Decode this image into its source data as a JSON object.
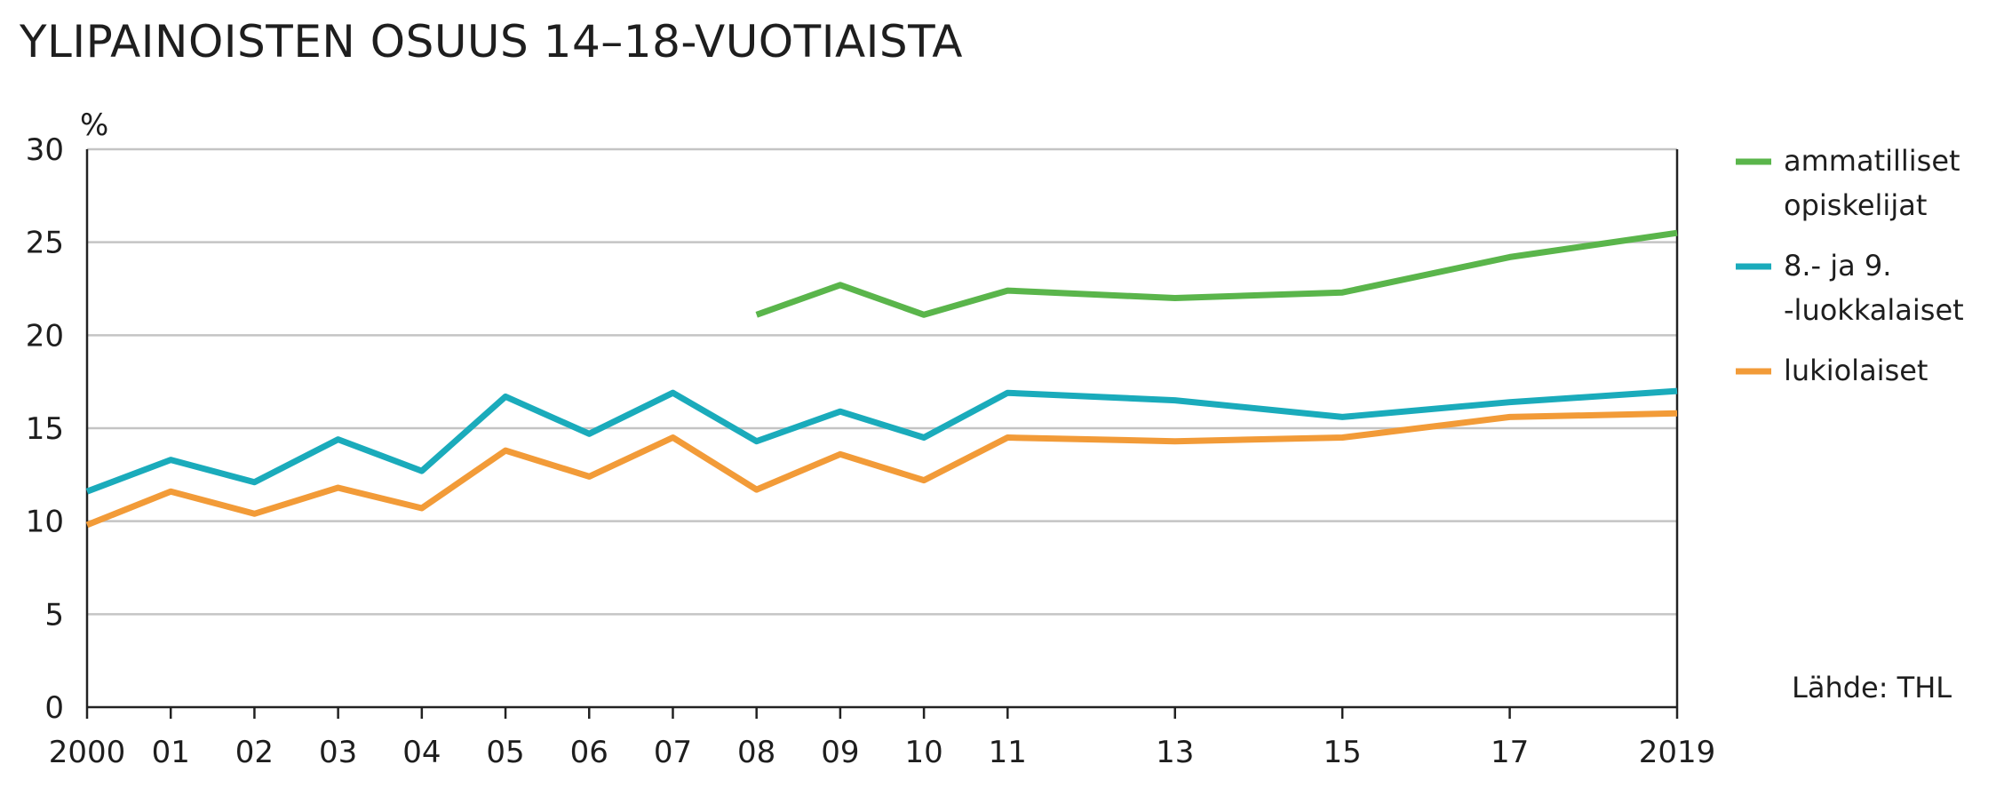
{
  "chart_data": {
    "type": "line",
    "title": "YLIPAINOISTEN OSUUS 14–18-VUOTIAISTA",
    "ylabel": "%",
    "xlabel": "",
    "ylim": [
      0,
      30
    ],
    "yticks": [
      0,
      5,
      10,
      15,
      20,
      25,
      30
    ],
    "xlim": [
      2000,
      2019
    ],
    "x": [
      2000,
      2001,
      2002,
      2003,
      2004,
      2005,
      2006,
      2007,
      2008,
      2009,
      2010,
      2011,
      2013,
      2015,
      2017,
      2019
    ],
    "xtick_labels": [
      "2000",
      "01",
      "02",
      "03",
      "04",
      "05",
      "06",
      "07",
      "08",
      "09",
      "10",
      "11",
      "13",
      "15",
      "17",
      "2019"
    ],
    "grid": "horizontal",
    "legend_position": "right",
    "series": [
      {
        "name": "ammatilliset opiskelijat",
        "legend_lines": [
          "ammatilliset",
          "opiskelijat"
        ],
        "color": "#5ab54b",
        "values": [
          null,
          null,
          null,
          null,
          null,
          null,
          null,
          null,
          21.1,
          22.7,
          21.1,
          22.4,
          22.0,
          22.3,
          24.2,
          25.5
        ]
      },
      {
        "name": "8.- ja 9. -luokkalaiset",
        "legend_lines": [
          "8.- ja 9.",
          "-luokkalaiset"
        ],
        "color": "#1aabbb",
        "values": [
          11.6,
          13.3,
          12.1,
          14.4,
          12.7,
          16.7,
          14.7,
          16.9,
          14.3,
          15.9,
          14.5,
          16.9,
          16.5,
          15.6,
          16.4,
          17.0
        ]
      },
      {
        "name": "lukiolaiset",
        "legend_lines": [
          "lukiolaiset"
        ],
        "color": "#f29b38",
        "values": [
          9.8,
          11.6,
          10.4,
          11.8,
          10.7,
          13.8,
          12.4,
          14.5,
          11.7,
          13.6,
          12.2,
          14.5,
          14.3,
          14.5,
          15.6,
          15.8
        ]
      }
    ],
    "source": "Lähde: THL"
  }
}
